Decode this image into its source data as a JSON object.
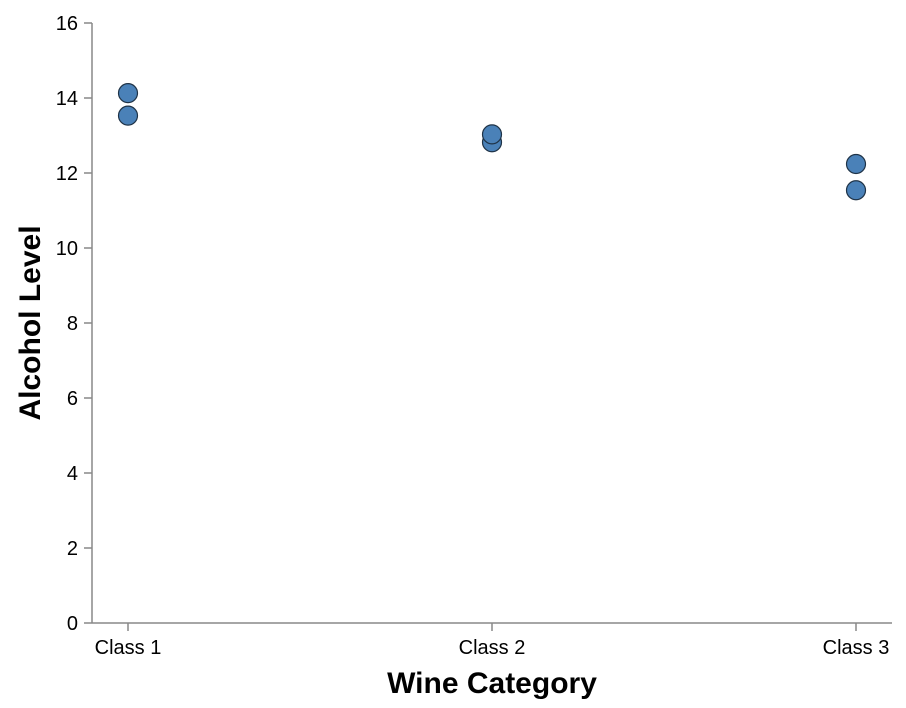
{
  "chart_data": {
    "type": "scatter",
    "xlabel": "Wine Category",
    "ylabel": "Alcohol Level",
    "categories": [
      "Class 1",
      "Class 2",
      "Class 3"
    ],
    "ylim": [
      0,
      16
    ],
    "y_ticks": [
      0,
      2,
      4,
      6,
      8,
      10,
      12,
      14,
      16
    ],
    "grid": false,
    "legend": "none",
    "point_color": "#4a81b8",
    "series": [
      {
        "points": [
          {
            "x": "Class 1",
            "y": 14.13
          },
          {
            "x": "Class 1",
            "y": 13.53
          },
          {
            "x": "Class 2",
            "y": 12.82
          },
          {
            "x": "Class 2",
            "y": 13.03
          },
          {
            "x": "Class 3",
            "y": 12.24
          },
          {
            "x": "Class 3",
            "y": 11.54
          }
        ]
      }
    ]
  }
}
